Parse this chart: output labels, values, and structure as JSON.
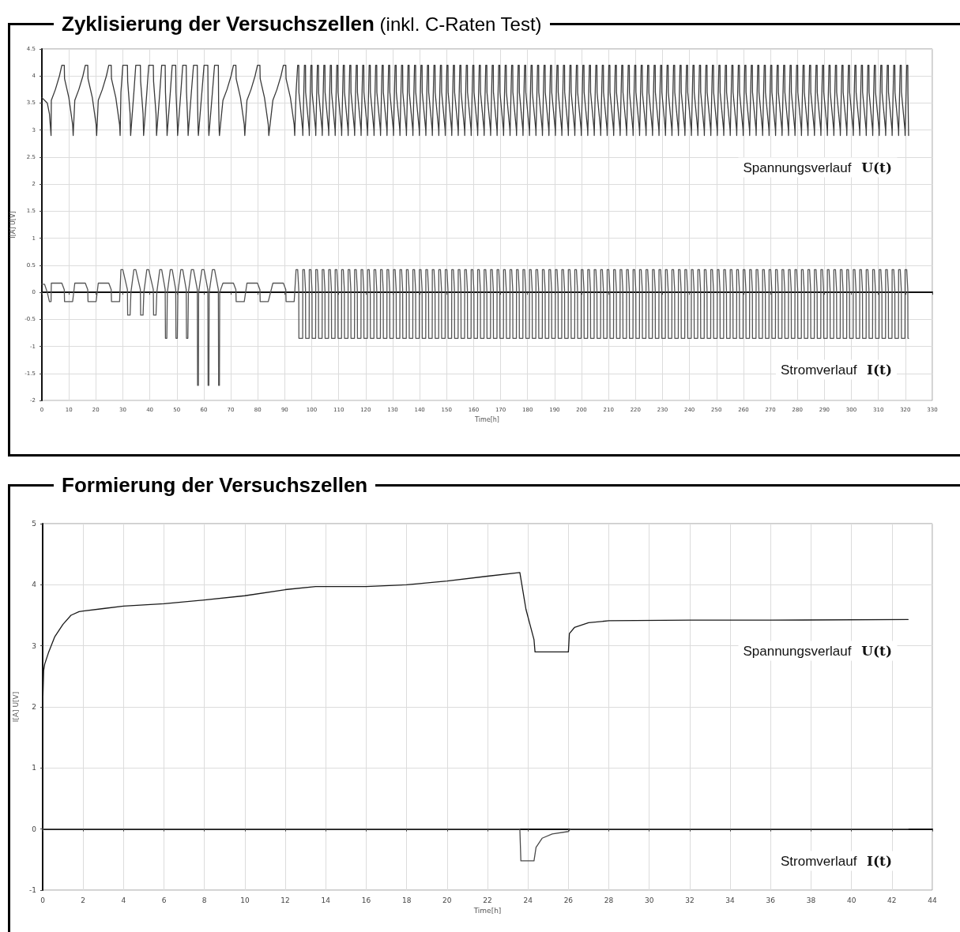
{
  "chart_data": [
    {
      "type": "line",
      "title": "Zyklisierung der Versuchszellen",
      "subtitle": "(inkl. C-Raten Test)",
      "xlabel": "Time[h]",
      "ylabel": "I[A] U[V]",
      "xlim": [
        0,
        330
      ],
      "xticks": [
        0,
        10,
        20,
        30,
        40,
        50,
        60,
        70,
        80,
        90,
        100,
        110,
        120,
        130,
        140,
        150,
        160,
        170,
        180,
        190,
        200,
        210,
        220,
        230,
        240,
        250,
        260,
        270,
        280,
        290,
        300,
        310,
        320,
        330
      ],
      "ylim": [
        -2,
        4.5
      ],
      "yticks": [
        -2,
        -1.5,
        -1,
        -0.5,
        0,
        0.5,
        1,
        1.5,
        2,
        2.5,
        3,
        3.5,
        4,
        4.5
      ],
      "grid": true,
      "legend": false,
      "marker": "none",
      "line_style": "solid",
      "x": [
        0,
        1,
        2,
        2.8,
        3.4,
        3.5,
        5.0,
        6.5,
        7.4,
        8.3,
        8.4,
        10.0,
        11.4,
        11.6,
        12.2,
        13.7,
        15.2,
        16.1,
        17.0,
        17.1,
        18.7,
        20.1,
        20.3,
        20.9,
        22.4,
        23.9,
        24.8,
        25.7,
        25.8,
        27.4,
        28.8,
        29.0,
        29.3,
        30.0,
        31.7,
        31.8,
        32.7,
        32.9,
        33.0,
        34.1,
        34.8,
        36.5,
        36.6,
        37.5,
        37.7,
        37.8,
        38.9,
        39.6,
        41.3,
        41.4,
        42.3,
        42.5,
        42.6,
        43.7,
        44.4,
        45.7,
        45.8,
        46.3,
        46.4,
        46.5,
        47.6,
        48.3,
        49.6,
        49.7,
        50.2,
        50.3,
        50.4,
        51.5,
        52.2,
        53.5,
        53.6,
        54.1,
        54.2,
        54.3,
        55.4,
        56.2,
        57.6,
        57.7,
        57.9,
        58.0,
        58.1,
        59.3,
        60.1,
        61.5,
        61.6,
        61.8,
        61.9,
        62.0,
        63.2,
        64.0,
        65.4,
        65.5,
        65.7,
        65.8,
        65.9,
        67.1,
        68.6,
        70.1,
        71.0,
        71.9,
        72.0,
        73.6,
        75.0,
        75.2,
        76.0,
        77.5,
        79.0,
        79.9,
        80.8,
        80.9,
        82.5,
        83.9,
        84.1,
        85.6,
        87.1,
        88.6,
        89.5,
        90.4,
        90.5,
        92.1,
        93.5,
        93.7,
        94.2,
        94.8,
        95.2,
        95.25,
        96.65,
        96.7,
        97.3,
        97.7,
        97.75,
        99.05,
        99.1,
        99.7,
        100.1,
        100.15,
        101.45,
        101.5,
        102.1,
        102.5,
        102.55,
        103.85,
        103.9,
        104.5,
        104.9,
        104.95,
        106.25,
        106.3,
        106.9,
        107.3,
        107.35,
        108.65,
        108.7,
        109.3,
        109.7,
        109.75,
        111.05,
        111.1,
        111.7,
        112.1,
        112.15,
        113.45,
        113.5,
        114.1,
        114.5,
        114.55,
        115.85,
        115.9,
        116.5,
        116.9,
        116.95,
        118.25,
        118.3,
        118.9,
        119.3,
        119.35,
        120.65,
        120.7,
        121.3,
        121.7,
        121.75,
        123.05,
        123.1,
        123.7,
        124.1,
        124.15,
        125.45,
        125.5,
        126.1,
        126.5,
        126.55,
        127.85,
        127.9,
        128.5,
        128.9,
        128.95,
        130.25,
        130.3,
        130.9,
        131.3,
        131.35,
        132.65,
        132.7,
        133.3,
        133.7,
        133.75,
        135.05,
        135.1,
        135.7,
        136.1,
        136.15,
        137.45,
        137.5,
        138.1,
        138.5,
        138.55,
        139.85,
        139.9,
        140.5,
        140.9,
        140.95,
        142.25,
        142.3,
        142.9,
        143.3,
        143.35,
        144.65,
        144.7,
        145.3,
        145.7,
        145.75,
        147.05,
        147.1,
        147.7,
        148.1,
        148.15,
        149.45,
        149.5,
        150.1,
        150.5,
        150.55,
        151.85,
        151.9,
        152.5,
        152.9,
        152.95,
        154.25,
        154.3,
        154.9,
        155.3,
        155.35,
        156.65,
        156.7,
        157.3,
        157.7,
        157.75,
        159.05,
        159.1,
        159.7,
        160.1,
        160.15,
        161.45,
        161.5,
        162.1,
        162.5,
        162.55,
        163.85,
        163.9,
        164.5,
        164.9,
        164.95,
        166.25,
        166.3,
        166.9,
        167.3,
        167.35,
        168.65,
        168.7,
        169.3,
        169.7,
        169.75,
        171.05,
        171.1,
        171.7,
        172.1,
        172.15,
        173.45,
        173.5,
        174.1,
        174.5,
        174.55,
        175.85,
        175.9,
        176.5,
        176.9,
        176.95,
        178.25,
        178.3,
        178.9,
        179.3,
        179.35,
        180.65,
        180.7,
        181.3,
        181.7,
        181.75,
        183.05,
        183.1,
        183.7,
        184.1,
        184.15,
        185.45,
        185.5,
        186.1,
        186.5,
        186.55,
        187.85,
        187.9,
        188.5,
        188.9,
        188.95,
        190.25,
        190.3,
        190.9,
        191.3,
        191.35,
        192.65,
        192.7,
        193.3,
        193.7,
        193.75,
        195.05,
        195.1,
        195.7,
        196.1,
        196.15,
        197.45,
        197.5,
        198.1,
        198.5,
        198.55,
        199.85,
        199.9,
        200.5,
        200.9,
        200.95,
        202.25,
        202.3,
        202.9,
        203.3,
        203.35,
        204.65,
        204.7,
        205.3,
        205.7,
        205.75,
        207.05,
        207.1,
        207.7,
        208.1,
        208.15,
        209.45,
        209.5,
        210.1,
        210.5,
        210.55,
        211.85,
        211.9,
        212.5,
        212.9,
        212.95,
        214.25,
        214.3,
        214.9,
        215.3,
        215.35,
        216.65,
        216.7,
        217.3,
        217.7,
        217.75,
        219.05,
        219.1,
        219.7,
        220.1,
        220.15,
        221.45,
        221.5,
        222.1,
        222.5,
        222.55,
        223.85,
        223.9,
        224.5,
        224.9,
        224.95,
        226.25,
        226.3,
        226.9,
        227.3,
        227.35,
        228.65,
        228.7,
        229.3,
        229.7,
        229.75,
        231.05,
        231.1,
        231.7,
        232.1,
        232.15,
        233.45,
        233.5,
        234.1,
        234.5,
        234.55,
        235.85,
        235.9,
        236.5,
        236.9,
        236.95,
        238.25,
        238.3,
        238.9,
        239.3,
        239.35,
        240.65,
        240.7,
        241.3,
        241.7,
        241.75,
        243.05,
        243.1,
        243.7,
        244.1,
        244.15,
        245.45,
        245.5,
        246.1,
        246.5,
        246.55,
        247.85,
        247.9,
        248.5,
        248.9,
        248.95,
        250.25,
        250.3,
        250.9,
        251.3,
        251.35,
        252.65,
        252.7,
        253.3,
        253.7,
        253.75,
        255.05,
        255.1,
        255.7,
        256.1,
        256.15,
        257.45,
        257.5,
        258.1,
        258.5,
        258.55,
        259.85,
        259.9,
        260.5,
        260.9,
        260.95,
        262.25,
        262.3,
        262.9,
        263.3,
        263.35,
        264.65,
        264.7,
        265.3,
        265.7,
        265.75,
        267.05,
        267.1,
        267.7,
        268.1,
        268.15,
        269.45,
        269.5,
        270.1,
        270.5,
        270.55,
        271.85,
        271.9,
        272.5,
        272.9,
        272.95,
        274.25,
        274.3,
        274.9,
        275.3,
        275.35,
        276.65,
        276.7,
        277.3,
        277.7,
        277.75,
        279.05,
        279.1,
        279.7,
        280.1,
        280.15,
        281.45,
        281.5,
        282.1,
        282.5,
        282.55,
        283.85,
        283.9,
        284.5,
        284.9,
        284.95,
        286.25,
        286.3,
        286.9,
        287.3,
        287.35,
        288.65,
        288.7,
        289.3,
        289.7,
        289.75,
        291.05,
        291.1,
        291.7,
        292.1,
        292.15,
        293.45,
        293.5,
        294.1,
        294.5,
        294.55,
        295.85,
        295.9,
        296.5,
        296.9,
        296.95,
        298.25,
        298.3,
        298.9,
        299.3,
        299.35,
        300.65,
        300.7,
        301.3,
        301.7,
        301.75,
        303.05,
        303.1,
        303.7,
        304.1,
        304.15,
        305.45,
        305.5,
        306.1,
        306.5,
        306.55,
        307.85,
        307.9,
        308.5,
        308.9,
        308.95,
        310.25,
        310.3,
        310.9,
        311.3,
        311.35,
        312.65,
        312.7,
        313.3,
        313.7,
        313.75,
        315.05,
        315.1,
        315.7,
        316.1,
        316.15,
        317.45,
        317.5,
        318.1,
        318.5,
        318.55,
        319.85,
        319.9,
        320.5,
        320.9,
        320.95,
        321.2
      ],
      "series": [
        {
          "name": "Spannungsverlauf U(t)",
          "color": "#3a3a3a",
          "values": [
            3.6,
            3.55,
            3.5,
            3.3,
            2.9,
            3.55,
            3.75,
            4.0,
            4.2,
            4.2,
            3.95,
            3.6,
            3.1,
            2.9,
            3.55,
            3.75,
            4.0,
            4.2,
            4.2,
            3.95,
            3.6,
            3.1,
            2.9,
            3.55,
            3.75,
            4.0,
            4.2,
            4.2,
            3.95,
            3.6,
            3.1,
            2.9,
            3.7,
            4.2,
            4.2,
            3.9,
            3.3,
            2.9,
            2.9,
            3.7,
            4.2,
            4.2,
            3.9,
            3.3,
            2.9,
            2.9,
            3.7,
            4.2,
            4.2,
            3.9,
            3.3,
            2.9,
            2.9,
            3.7,
            4.2,
            4.2,
            3.7,
            3.1,
            2.9,
            2.9,
            3.7,
            4.2,
            4.2,
            3.7,
            3.1,
            2.9,
            2.9,
            3.7,
            4.2,
            4.2,
            3.7,
            3.1,
            2.9,
            2.9,
            3.7,
            4.2,
            4.2,
            3.5,
            3.0,
            2.9,
            2.9,
            3.7,
            4.2,
            4.2,
            3.5,
            3.0,
            2.9,
            2.9,
            3.7,
            4.2,
            4.2,
            3.5,
            3.0,
            2.9,
            2.9,
            3.55,
            3.75,
            4.0,
            4.2,
            4.2,
            3.95,
            3.6,
            3.1,
            2.9,
            3.55,
            3.75,
            4.0,
            4.2,
            4.2,
            3.95,
            3.6,
            3.1,
            2.9,
            3.55,
            3.75,
            4.0,
            4.2,
            4.2,
            3.95,
            3.6,
            3.1,
            2.9,
            3.7,
            4.2,
            4.2,
            3.7,
            3.0,
            2.9,
            4.2,
            4.2,
            3.7,
            3.0,
            2.9,
            4.2,
            4.2,
            3.7,
            3.0,
            2.9,
            4.2,
            4.2,
            3.7,
            3.0,
            2.9,
            4.2,
            4.2,
            3.7,
            3.0,
            2.9,
            4.2,
            4.2,
            3.7,
            3.0,
            2.9,
            4.2,
            4.2,
            3.7,
            3.0,
            2.9,
            4.2,
            4.2,
            3.7,
            3.0,
            2.9,
            4.2,
            4.2,
            3.7,
            3.0,
            2.9,
            4.2,
            4.2,
            3.7,
            3.0,
            2.9,
            4.2,
            4.2,
            3.7,
            3.0,
            2.9,
            4.2,
            4.2,
            3.7,
            3.0,
            2.9,
            4.2,
            4.2,
            3.7,
            3.0,
            2.9,
            4.2,
            4.2,
            3.7,
            3.0,
            2.9,
            4.2,
            4.2,
            3.7,
            3.0,
            2.9,
            4.2,
            4.2,
            3.7,
            3.0,
            2.9,
            4.2,
            4.2,
            3.7,
            3.0,
            2.9,
            4.2,
            4.2,
            3.7,
            3.0,
            2.9,
            4.2,
            4.2,
            3.7,
            3.0,
            2.9,
            4.2,
            4.2,
            3.7,
            3.0,
            2.9,
            4.2,
            4.2,
            3.7,
            3.0,
            2.9,
            4.2,
            4.2,
            3.7,
            3.0,
            2.9,
            4.2,
            4.2,
            3.7,
            3.0,
            2.9,
            4.2,
            4.2,
            3.7,
            3.0,
            2.9,
            4.2,
            4.2,
            3.7,
            3.0,
            2.9,
            4.2,
            4.2,
            3.7,
            3.0,
            2.9,
            4.2,
            4.2,
            3.7,
            3.0,
            2.9,
            4.2,
            4.2,
            3.7,
            3.0,
            2.9,
            4.2,
            4.2,
            3.7,
            3.0,
            2.9,
            4.2,
            4.2,
            3.7,
            3.0,
            2.9,
            4.2,
            4.2,
            3.7,
            3.0,
            2.9,
            4.2,
            4.2,
            3.7,
            3.0,
            2.9,
            4.2,
            4.2,
            3.7,
            3.0,
            2.9,
            4.2,
            4.2,
            3.7,
            3.0,
            2.9,
            4.2,
            4.2,
            3.7,
            3.0,
            2.9,
            4.2,
            4.2,
            3.7,
            3.0,
            2.9,
            4.2,
            4.2,
            3.7,
            3.0,
            2.9,
            4.2,
            4.2,
            3.7,
            3.0,
            2.9,
            4.2,
            4.2,
            3.7,
            3.0,
            2.9,
            4.2,
            4.2,
            3.7,
            3.0,
            2.9,
            4.2,
            4.2,
            3.7,
            3.0,
            2.9,
            4.2,
            4.2,
            3.7,
            3.0,
            2.9,
            4.2,
            4.2,
            3.7,
            3.0,
            2.9,
            4.2,
            4.2,
            3.7,
            3.0,
            2.9,
            4.2,
            4.2,
            3.7,
            3.0,
            2.9,
            4.2,
            4.2,
            3.7,
            3.0,
            2.9,
            4.2,
            4.2,
            3.7,
            3.0,
            2.9,
            4.2,
            4.2,
            3.7,
            3.0,
            2.9,
            4.2,
            4.2,
            3.7,
            3.0,
            2.9,
            4.2,
            4.2,
            3.7,
            3.0,
            2.9,
            4.2,
            4.2,
            3.7,
            3.0,
            2.9,
            4.2,
            4.2,
            3.7,
            3.0,
            2.9,
            4.2,
            4.2,
            3.7,
            3.0,
            2.9,
            4.2,
            4.2,
            3.7,
            3.0,
            2.9,
            4.2,
            4.2,
            3.7,
            3.0,
            2.9,
            4.2,
            4.2,
            3.7,
            3.0,
            2.9,
            4.2,
            4.2,
            3.7,
            3.0,
            2.9,
            4.2,
            4.2,
            3.7,
            3.0,
            2.9,
            4.2,
            4.2,
            3.7,
            3.0,
            2.9,
            4.2,
            4.2,
            3.7,
            3.0,
            2.9,
            4.2,
            4.2,
            3.7,
            3.0,
            2.9,
            4.2,
            4.2,
            3.7,
            3.0,
            2.9,
            4.2,
            4.2,
            3.7,
            3.0,
            2.9,
            4.2,
            4.2,
            3.7,
            3.0,
            2.9,
            4.2,
            4.2,
            3.7,
            3.0,
            2.9,
            4.2,
            4.2,
            3.7,
            3.0,
            2.9,
            4.2,
            4.2,
            3.7,
            3.0,
            2.9,
            4.2,
            4.2,
            3.7,
            3.0,
            2.9,
            4.2,
            4.2,
            3.7,
            3.0,
            2.9,
            4.2,
            4.2,
            3.7,
            3.0,
            2.9,
            4.2,
            4.2,
            3.7,
            3.0,
            2.9,
            4.2,
            4.2,
            3.7,
            3.0,
            2.9,
            4.2,
            4.2,
            3.7,
            3.0,
            2.9,
            4.2,
            4.2,
            3.7,
            3.0,
            2.9,
            4.2,
            4.2,
            3.7,
            3.0,
            2.9,
            4.2,
            4.2,
            3.7,
            3.0,
            2.9,
            4.2,
            4.2,
            3.7,
            3.0,
            2.9,
            4.2,
            4.2,
            3.7,
            3.0,
            2.9,
            4.2,
            4.2,
            3.7,
            3.0,
            2.9,
            4.2,
            4.2,
            3.7,
            3.0,
            2.9,
            4.2,
            4.2,
            3.7,
            3.0,
            2.9,
            4.2,
            4.2,
            3.7,
            3.0,
            2.9,
            4.2,
            4.2,
            3.7,
            3.0,
            2.9,
            4.2,
            4.2,
            3.7,
            3.0,
            2.9,
            4.2,
            4.2,
            3.7,
            3.0,
            2.9,
            4.2,
            4.2,
            3.7,
            3.0,
            2.9,
            4.2,
            4.2,
            3.7,
            3.0,
            2.9,
            4.2,
            4.2,
            3.7,
            3.0,
            2.9,
            4.2,
            4.2,
            3.7,
            3.0,
            2.9,
            4.2,
            4.2,
            3.7,
            3.0,
            2.9,
            4.2,
            4.2,
            3.7,
            3.0,
            2.9,
            4.2,
            4.2,
            3.7,
            3.0,
            2.9,
            4.2,
            4.2,
            3.7,
            3.0,
            2.9,
            4.2,
            4.2,
            3.7,
            3.0,
            2.9,
            4.2,
            4.2,
            3.7,
            2.9
          ]
        },
        {
          "name": "Stromverlauf I(t)",
          "color": "#555555",
          "values": [
            0.15,
            0.15,
            0,
            -0.17,
            -0.17,
            0.17,
            0.17,
            0.17,
            0.17,
            0.05,
            -0.17,
            -0.17,
            -0.17,
            -0.17,
            0.17,
            0.17,
            0.17,
            0.17,
            0.05,
            -0.17,
            -0.17,
            -0.17,
            -0.17,
            0.17,
            0.17,
            0.17,
            0.17,
            0.05,
            -0.17,
            -0.17,
            -0.17,
            -0.17,
            0.42,
            0.42,
            0.05,
            -0.42,
            -0.42,
            -0.42,
            0,
            0.42,
            0.42,
            0.05,
            -0.42,
            -0.42,
            -0.42,
            0,
            0.42,
            0.42,
            0.05,
            -0.42,
            -0.42,
            -0.42,
            0,
            0.42,
            0.42,
            0.05,
            -0.85,
            -0.85,
            -0.85,
            0,
            0.42,
            0.42,
            0.05,
            -0.85,
            -0.85,
            -0.85,
            0,
            0.42,
            0.42,
            0.05,
            -0.85,
            -0.85,
            -0.85,
            0,
            0.42,
            0.42,
            0.05,
            -1.72,
            -1.72,
            -1.72,
            0,
            0.42,
            0.42,
            0.05,
            -1.72,
            -1.72,
            -1.72,
            0,
            0.42,
            0.42,
            0.05,
            -1.72,
            -1.72,
            -1.72,
            0,
            0.17,
            0.17,
            0.17,
            0.17,
            0.05,
            -0.17,
            -0.17,
            -0.17,
            -0.17,
            0.17,
            0.17,
            0.17,
            0.17,
            0.05,
            -0.17,
            -0.17,
            -0.17,
            -0.17,
            0.17,
            0.17,
            0.17,
            0.17,
            0.05,
            -0.17,
            -0.17,
            -0.17,
            -0.17,
            0.42,
            0.42,
            0.05,
            -0.85,
            -0.85,
            0.42,
            0.42,
            0.05,
            -0.85,
            -0.85,
            0.42,
            0.42,
            0.05,
            -0.85,
            -0.85,
            0.42,
            0.42,
            0.05,
            -0.85,
            -0.85,
            0.42,
            0.42,
            0.05,
            -0.85,
            -0.85,
            0.42,
            0.42,
            0.05,
            -0.85,
            -0.85,
            0.42,
            0.42,
            0.05,
            -0.85,
            -0.85,
            0.42,
            0.42,
            0.05,
            -0.85,
            -0.85,
            0.42,
            0.42,
            0.05,
            -0.85,
            -0.85,
            0.42,
            0.42,
            0.05,
            -0.85,
            -0.85,
            0.42,
            0.42,
            0.05,
            -0.85,
            -0.85,
            0.42,
            0.42,
            0.05,
            -0.85,
            -0.85,
            0.42,
            0.42,
            0.05,
            -0.85,
            -0.85,
            0.42,
            0.42,
            0.05,
            -0.85,
            -0.85,
            0.42,
            0.42,
            0.05,
            -0.85,
            -0.85,
            0.42,
            0.42,
            0.05,
            -0.85,
            -0.85,
            0.42,
            0.42,
            0.05,
            -0.85,
            -0.85,
            0.42,
            0.42,
            0.05,
            -0.85,
            -0.85,
            0.42,
            0.42,
            0.05,
            -0.85,
            -0.85,
            0.42,
            0.42,
            0.05,
            -0.85,
            -0.85,
            0.42,
            0.42,
            0.05,
            -0.85,
            -0.85,
            0.42,
            0.42,
            0.05,
            -0.85,
            -0.85,
            0.42,
            0.42,
            0.05,
            -0.85,
            -0.85,
            0.42,
            0.42,
            0.05,
            -0.85,
            -0.85,
            0.42,
            0.42,
            0.05,
            -0.85,
            -0.85,
            0.42,
            0.42,
            0.05,
            -0.85,
            -0.85,
            0.42,
            0.42,
            0.05,
            -0.85,
            -0.85,
            0.42,
            0.42,
            0.05,
            -0.85,
            -0.85,
            0.42,
            0.42,
            0.05,
            -0.85,
            -0.85,
            0.42,
            0.42,
            0.05,
            -0.85,
            -0.85,
            0.42,
            0.42,
            0.05,
            -0.85,
            -0.85,
            0.42,
            0.42,
            0.05,
            -0.85,
            -0.85,
            0.42,
            0.42,
            0.05,
            -0.85,
            -0.85,
            0.42,
            0.42,
            0.05,
            -0.85,
            -0.85,
            0.42,
            0.42,
            0.05,
            -0.85,
            -0.85,
            0.42,
            0.42,
            0.05,
            -0.85,
            -0.85,
            0.42,
            0.42,
            0.05,
            -0.85,
            -0.85,
            0.42,
            0.42,
            0.05,
            -0.85,
            -0.85,
            0.42,
            0.42,
            0.05,
            -0.85,
            -0.85,
            0.42,
            0.42,
            0.05,
            -0.85,
            -0.85,
            0.42,
            0.42,
            0.05,
            -0.85,
            -0.85,
            0.42,
            0.42,
            0.05,
            -0.85,
            -0.85,
            0.42,
            0.42,
            0.05,
            -0.85,
            -0.85,
            0.42,
            0.42,
            0.05,
            -0.85,
            -0.85,
            0.42,
            0.42,
            0.05,
            -0.85,
            -0.85,
            0.42,
            0.42,
            0.05,
            -0.85,
            -0.85,
            0.42,
            0.42,
            0.05,
            -0.85,
            -0.85,
            0.42,
            0.42,
            0.05,
            -0.85,
            -0.85,
            0.42,
            0.42,
            0.05,
            -0.85,
            -0.85,
            0.42,
            0.42,
            0.05,
            -0.85,
            -0.85,
            0.42,
            0.42,
            0.05,
            -0.85,
            -0.85,
            0.42,
            0.42,
            0.05,
            -0.85,
            -0.85,
            0.42,
            0.42,
            0.05,
            -0.85,
            -0.85,
            0.42,
            0.42,
            0.05,
            -0.85,
            -0.85,
            0.42,
            0.42,
            0.05,
            -0.85,
            -0.85,
            0.42,
            0.42,
            0.05,
            -0.85,
            -0.85,
            0.42,
            0.42,
            0.05,
            -0.85,
            -0.85,
            0.42,
            0.42,
            0.05,
            -0.85,
            -0.85,
            0.42,
            0.42,
            0.05,
            -0.85,
            -0.85,
            0.42,
            0.42,
            0.05,
            -0.85,
            -0.85,
            0.42,
            0.42,
            0.05,
            -0.85,
            -0.85,
            0.42,
            0.42,
            0.05,
            -0.85,
            -0.85,
            0.42,
            0.42,
            0.05,
            -0.85,
            -0.85,
            0.42,
            0.42,
            0.05,
            -0.85,
            -0.85,
            0.42,
            0.42,
            0.05,
            -0.85,
            -0.85,
            0.42,
            0.42,
            0.05,
            -0.85,
            -0.85,
            0.42,
            0.42,
            0.05,
            -0.85,
            -0.85,
            0.42,
            0.42,
            0.05,
            -0.85,
            -0.85,
            0.42,
            0.42,
            0.05,
            -0.85,
            -0.85,
            0.42,
            0.42,
            0.05,
            -0.85,
            -0.85,
            0.42,
            0.42,
            0.05,
            -0.85,
            -0.85,
            0.42,
            0.42,
            0.05,
            -0.85,
            -0.85,
            0.42,
            0.42,
            0.05,
            -0.85,
            -0.85,
            0.42,
            0.42,
            0.05,
            -0.85,
            -0.85,
            0.42,
            0.42,
            0.05,
            -0.85,
            -0.85,
            0.42,
            0.42,
            0.05,
            -0.85,
            -0.85,
            0.42,
            0.42,
            0.05,
            -0.85,
            -0.85,
            0.42,
            0.42,
            0.05,
            -0.85,
            -0.85,
            0.42,
            0.42,
            0.05,
            -0.85,
            -0.85,
            0.42,
            0.42,
            0.05,
            -0.85,
            -0.85,
            0.42,
            0.42,
            0.05,
            -0.85,
            -0.85,
            0.42,
            0.42,
            0.05,
            -0.85,
            -0.85,
            0.42,
            0.42,
            0.05,
            -0.85,
            -0.85,
            0.42,
            0.42,
            0.05,
            -0.85,
            -0.85,
            0.42,
            0.42,
            0.05,
            -0.85,
            -0.85,
            0.42,
            0.42,
            0.05,
            -0.85,
            -0.85,
            0.42,
            0.42,
            0.05,
            -0.85,
            -0.85,
            0.42,
            0.42,
            0.05,
            -0.85,
            -0.85,
            0.42,
            0.42,
            0.05,
            -0.85,
            -0.85,
            0.42,
            0.42,
            0.05,
            -0.85,
            -0.85,
            0.42,
            0.42,
            0.05,
            -0.85,
            -0.85,
            0.42,
            0.42,
            0.05,
            -0.85,
            -0.85,
            0.42,
            0.42,
            0.05,
            -0.85,
            -0.85,
            0.42,
            0.42,
            0.05,
            -0.85,
            -0.85,
            0.42,
            0.42,
            0.05,
            -0.85,
            -0.85
          ]
        }
      ]
    },
    {
      "type": "line",
      "title": "Formierung der Versuchszellen",
      "xlabel": "Time[h]",
      "ylabel": "I[A] U[V]",
      "xlim": [
        0,
        44
      ],
      "xticks": [
        0,
        2,
        4,
        6,
        8,
        10,
        12,
        14,
        16,
        18,
        20,
        22,
        24,
        26,
        28,
        30,
        32,
        34,
        36,
        38,
        40,
        42,
        44
      ],
      "ylim": [
        -1,
        5
      ],
      "yticks": [
        -1,
        0,
        1,
        2,
        3,
        4,
        5
      ],
      "grid": true,
      "legend": false,
      "marker": "none",
      "line_style": "solid",
      "series": [
        {
          "name": "Spannungsverlauf U(t)",
          "color": "#1a1a1a",
          "x": [
            0,
            0.05,
            0.1,
            0.3,
            0.6,
            1.0,
            1.4,
            1.8,
            2,
            3,
            4,
            6,
            8,
            10,
            12,
            13.5,
            15,
            16,
            18,
            20,
            22,
            23.6,
            23.7,
            23.9,
            24.1,
            24.3,
            24.35,
            26.0,
            26.05,
            26.3,
            27,
            28,
            32,
            36,
            42.8
          ],
          "values": [
            2.0,
            2.6,
            2.7,
            2.9,
            3.15,
            3.35,
            3.5,
            3.56,
            3.57,
            3.61,
            3.65,
            3.69,
            3.75,
            3.82,
            3.92,
            3.97,
            3.97,
            3.97,
            4.0,
            4.06,
            4.14,
            4.2,
            4.0,
            3.6,
            3.35,
            3.1,
            2.9,
            2.9,
            3.2,
            3.3,
            3.38,
            3.41,
            3.42,
            3.42,
            3.43
          ]
        },
        {
          "name": "Stromverlauf I(t)",
          "color": "#4a4a4a",
          "x": [
            0,
            23.6,
            23.65,
            24.3,
            24.4,
            24.7,
            25.2,
            26,
            26.1,
            42.8
          ],
          "values": [
            0,
            0,
            -0.52,
            -0.52,
            -0.3,
            -0.15,
            -0.08,
            -0.04,
            0,
            0
          ]
        }
      ]
    }
  ]
}
